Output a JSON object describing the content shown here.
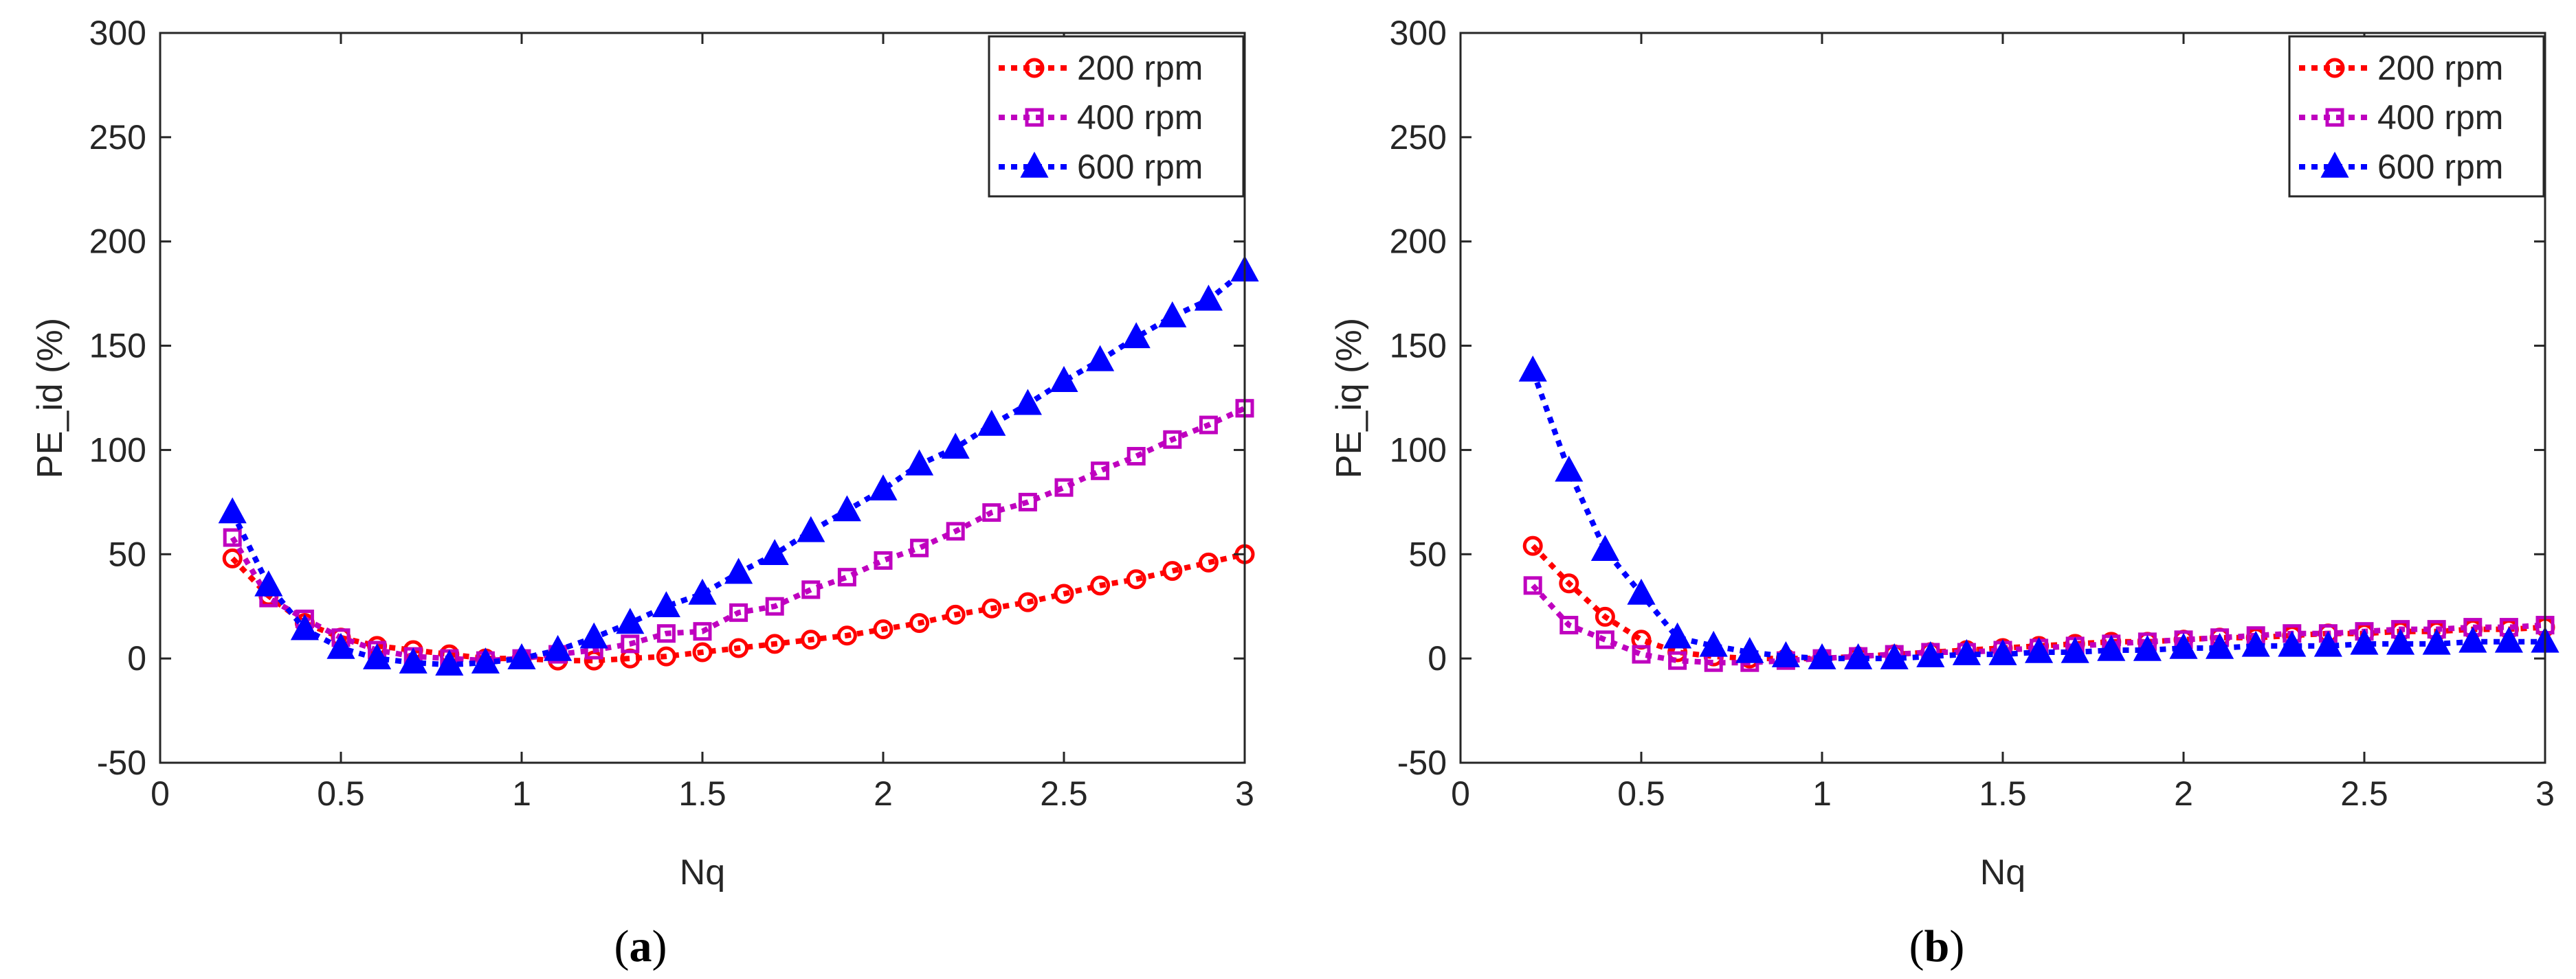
{
  "colors": {
    "series_200": "#ff0000",
    "series_400": "#bf00bf",
    "series_600": "#0000ff",
    "axis": "#262626"
  },
  "chart_data": [
    {
      "type": "line",
      "panel": "a",
      "panel_label": "a",
      "xlabel": "Nq",
      "ylabel": "PE_id (%)",
      "xlim": [
        0,
        3
      ],
      "ylim": [
        -50,
        300
      ],
      "xticks": [
        0,
        0.5,
        1,
        1.5,
        2,
        2.5,
        3
      ],
      "xtick_labels": [
        "0",
        "0.5",
        "1",
        "1.5",
        "2",
        "2.5",
        "3"
      ],
      "yticks": [
        -50,
        0,
        50,
        100,
        150,
        200,
        250,
        300
      ],
      "ytick_labels": [
        "-50",
        "0",
        "50",
        "100",
        "150",
        "200",
        "250",
        "300"
      ],
      "grid": false,
      "legend_position": "top-right",
      "x": [
        0.2,
        0.3,
        0.4,
        0.5,
        0.6,
        0.7,
        0.8,
        0.9,
        1.0,
        1.1,
        1.2,
        1.3,
        1.4,
        1.5,
        1.6,
        1.7,
        1.8,
        1.9,
        2.0,
        2.1,
        2.2,
        2.3,
        2.4,
        2.5,
        2.6,
        2.7,
        2.8,
        2.9,
        3.0
      ],
      "series": [
        {
          "name": "200 rpm",
          "marker": "circle",
          "color_key": "series_200",
          "values": [
            48,
            30,
            17,
            10,
            6,
            4,
            2,
            0,
            0,
            -1,
            -1,
            0,
            1,
            3,
            5,
            7,
            9,
            11,
            14,
            17,
            21,
            24,
            27,
            31,
            35,
            38,
            42,
            46,
            50
          ]
        },
        {
          "name": "400 rpm",
          "marker": "square",
          "color_key": "series_400",
          "values": [
            58,
            29,
            19,
            10,
            4,
            1,
            0,
            -1,
            0,
            2,
            4,
            7,
            12,
            13,
            22,
            25,
            33,
            39,
            47,
            53,
            61,
            70,
            75,
            82,
            90,
            97,
            105,
            112,
            120
          ]
        },
        {
          "name": "600 rpm",
          "marker": "triangle",
          "color_key": "series_600",
          "values": [
            70,
            35,
            14,
            5,
            0,
            -2,
            -3,
            -2,
            0,
            4,
            10,
            17,
            25,
            31,
            41,
            50,
            61,
            71,
            81,
            93,
            101,
            112,
            122,
            133,
            143,
            154,
            164,
            172,
            186
          ]
        }
      ]
    },
    {
      "type": "line",
      "panel": "b",
      "panel_label": "b",
      "xlabel": "Nq",
      "ylabel": "PE_iq (%)",
      "xlim": [
        0,
        3
      ],
      "ylim": [
        -50,
        300
      ],
      "xticks": [
        0,
        0.5,
        1,
        1.5,
        2,
        2.5,
        3
      ],
      "xtick_labels": [
        "0",
        "0.5",
        "1",
        "1.5",
        "2",
        "2.5",
        "3"
      ],
      "yticks": [
        -50,
        0,
        50,
        100,
        150,
        200,
        250,
        300
      ],
      "ytick_labels": [
        "-50",
        "0",
        "50",
        "100",
        "150",
        "200",
        "250",
        "300"
      ],
      "grid": false,
      "legend_position": "top-right",
      "x": [
        0.2,
        0.3,
        0.4,
        0.5,
        0.6,
        0.7,
        0.8,
        0.9,
        1.0,
        1.1,
        1.2,
        1.3,
        1.4,
        1.5,
        1.6,
        1.7,
        1.8,
        1.9,
        2.0,
        2.1,
        2.2,
        2.3,
        2.4,
        2.5,
        2.6,
        2.7,
        2.8,
        2.9,
        3.0
      ],
      "series": [
        {
          "name": "200 rpm",
          "marker": "circle",
          "color_key": "series_200",
          "values": [
            54,
            36,
            20,
            9,
            3,
            1,
            0,
            0,
            0,
            1,
            2,
            3,
            4,
            5,
            6,
            7,
            8,
            8,
            9,
            10,
            10,
            11,
            12,
            12,
            13,
            13,
            14,
            14,
            15
          ]
        },
        {
          "name": "400 rpm",
          "marker": "square",
          "color_key": "series_400",
          "values": [
            35,
            16,
            9,
            2,
            -1,
            -2,
            -2,
            -1,
            0,
            1,
            2,
            3,
            3,
            4,
            5,
            6,
            7,
            8,
            9,
            10,
            11,
            12,
            12,
            13,
            14,
            14,
            15,
            15,
            16
          ]
        },
        {
          "name": "600 rpm",
          "marker": "triangle",
          "color_key": "series_600",
          "values": [
            138,
            90,
            52,
            31,
            10,
            6,
            3,
            1,
            0,
            0,
            0,
            1,
            2,
            2,
            3,
            3,
            4,
            4,
            5,
            5,
            6,
            6,
            6,
            7,
            7,
            7,
            8,
            8,
            8
          ]
        }
      ]
    }
  ]
}
